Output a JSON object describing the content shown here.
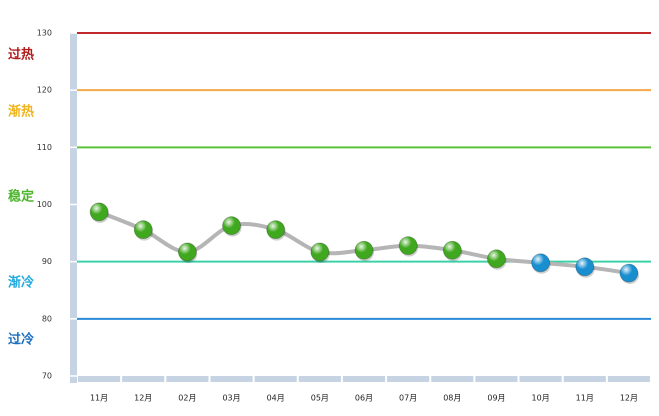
{
  "chart_data": {
    "type": "line",
    "categories": [
      "11月",
      "12月",
      "02月",
      "03月",
      "04月",
      "05月",
      "06月",
      "07月",
      "08月",
      "09月",
      "10月",
      "11月",
      "12月"
    ],
    "values": [
      98.7,
      95.6,
      91.7,
      96.3,
      95.6,
      91.7,
      92.0,
      92.8,
      92.0,
      90.5,
      89.8,
      89.1,
      88.0
    ],
    "point_colors": [
      "#3fa81e",
      "#3fa81e",
      "#3fa81e",
      "#3fa81e",
      "#3fa81e",
      "#3fa81e",
      "#3fa81e",
      "#3fa81e",
      "#3fa81e",
      "#3fa81e",
      "#1a8fd0",
      "#1a8fd0",
      "#1a8fd0"
    ],
    "line_color": "#b5b5b5",
    "ylim": [
      70,
      130
    ],
    "yticks": [
      70,
      80,
      90,
      100,
      110,
      120,
      130
    ],
    "reference_lines": [
      {
        "value": 130,
        "color": "#c0282a"
      },
      {
        "value": 120,
        "color": "#f5a94a"
      },
      {
        "value": 110,
        "color": "#5ac23a"
      },
      {
        "value": 90,
        "color": "#3dd0a8"
      },
      {
        "value": 80,
        "color": "#2a8ad8"
      }
    ],
    "zones": [
      {
        "label": "过热",
        "color": "#b01d1d"
      },
      {
        "label": "渐热",
        "color": "#f0b51c"
      },
      {
        "label": "稳定",
        "color": "#4cb52c"
      },
      {
        "label": "渐冷",
        "color": "#22a9e0"
      },
      {
        "label": "过冷",
        "color": "#1a6fc0"
      }
    ]
  }
}
